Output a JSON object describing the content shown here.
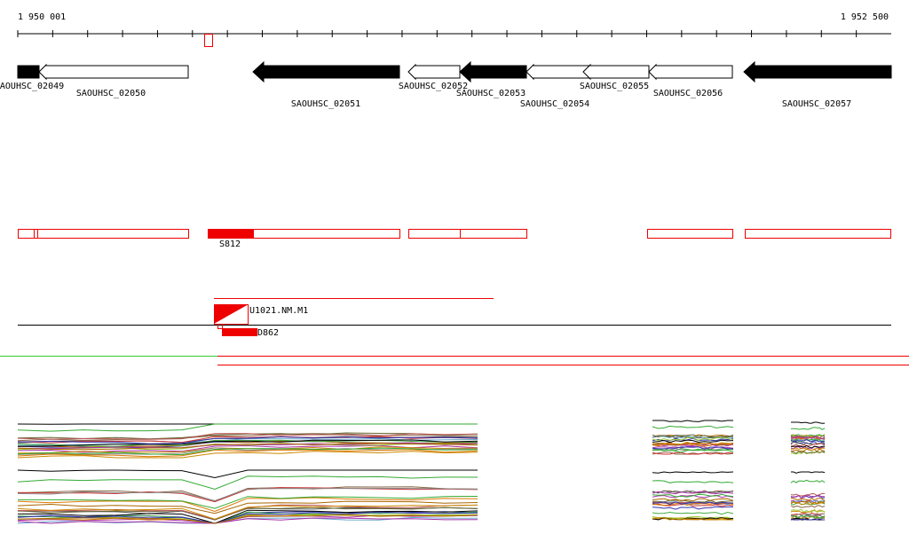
{
  "ruler": {
    "start": "1 950 001",
    "end": "1 952 500"
  },
  "genes": [
    "SAOUHSC_02049",
    "SAOUHSC_02050",
    "SAOUHSC_02051",
    "SAOUHSC_02052",
    "SAOUHSC_02053",
    "SAOUHSC_02054",
    "SAOUHSC_02055",
    "SAOUHSC_02056",
    "SAOUHSC_02057"
  ],
  "features": {
    "segment": "S812",
    "transcript": "U1021.NM.M1",
    "probe": "D862"
  }
}
